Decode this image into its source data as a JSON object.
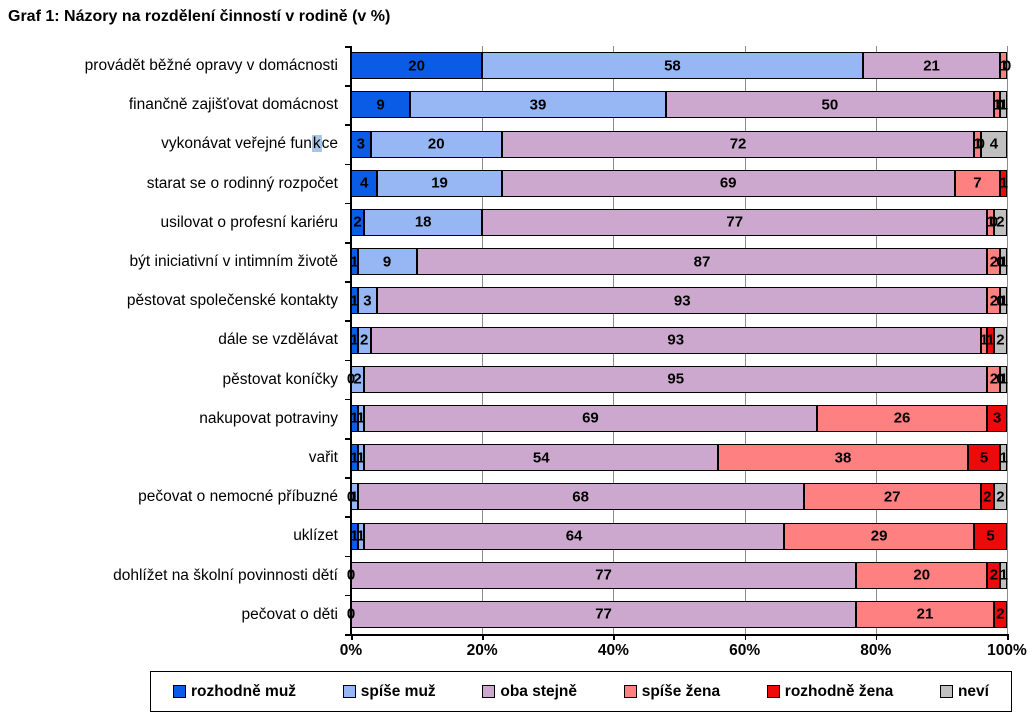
{
  "chart_data": {
    "type": "bar",
    "stacked": true,
    "horizontal": true,
    "title": "Graf 1: Názory na rozdělení činností v rodině (v %)",
    "xlim": [
      0,
      100
    ],
    "x_ticks": [
      "0%",
      "20%",
      "40%",
      "60%",
      "80%",
      "100%"
    ],
    "grid": "vertical",
    "legend_position": "bottom",
    "categories": [
      "provádět běžné opravy v domácnosti",
      "finančně zajišťovat domácnost",
      "vykonávat veřejné funkce",
      "starat se o rodinný rozpočet",
      "usilovat o profesní kariéru",
      "být iniciativní v intimním životě",
      "pěstovat společenské kontakty",
      "dále se vzdělávat",
      "pěstovat koníčky",
      "nakupovat potraviny",
      "vařit",
      "pečovat o nemocné příbuzné",
      "uklízet",
      "dohlížet na školní povinnosti dětí",
      "pečovat o děti"
    ],
    "series": [
      {
        "name": "rozhodně muž",
        "color": "#0a5ce6",
        "values": [
          20,
          9,
          3,
          4,
          2,
          1,
          1,
          1,
          0,
          1,
          1,
          0,
          1,
          0,
          0
        ],
        "visible_labels": [
          "20",
          "9",
          "3",
          "4",
          "2",
          "1",
          "1",
          "1",
          "0",
          "1",
          "1",
          "0",
          "1",
          "0",
          "0"
        ]
      },
      {
        "name": "spíše muž",
        "color": "#96b7f3",
        "values": [
          58,
          39,
          20,
          19,
          18,
          9,
          3,
          2,
          2,
          1,
          1,
          1,
          1,
          0,
          0
        ],
        "visible_labels": [
          "58",
          "39",
          "20",
          "19",
          "18",
          "9",
          "3",
          "2",
          "2",
          "1",
          "1",
          "1",
          "1",
          "0",
          "0"
        ]
      },
      {
        "name": "oba stejně",
        "color": "#cda8ce",
        "values": [
          21,
          50,
          72,
          69,
          77,
          87,
          93,
          93,
          95,
          69,
          54,
          68,
          64,
          77,
          77
        ],
        "visible_labels": [
          "21",
          "50",
          "72",
          "69",
          "77",
          "87",
          "93",
          "93",
          "95",
          "69",
          "54",
          "68",
          "64",
          "77",
          "77"
        ]
      },
      {
        "name": "spíše žena",
        "color": "#ff8080",
        "values": [
          1,
          1,
          1,
          7,
          1,
          2,
          2,
          1,
          2,
          26,
          38,
          27,
          29,
          20,
          21
        ],
        "visible_labels": [
          "1",
          "1",
          "1",
          "7",
          "1",
          "2",
          "2",
          "1",
          "2",
          "26",
          "38",
          "27",
          "29",
          "20",
          "21"
        ]
      },
      {
        "name": "rozhodně žena",
        "color": "#ee0a0a",
        "values": [
          0,
          0,
          0,
          1,
          0,
          0,
          0,
          1,
          0,
          3,
          5,
          2,
          5,
          2,
          2
        ],
        "visible_labels": [
          "0",
          "0",
          "0",
          "1",
          "0",
          "0",
          "0",
          "1",
          "0",
          "3",
          "5",
          "2",
          "5",
          "2",
          "2"
        ]
      },
      {
        "name": "neví",
        "color": "#c0c0c0",
        "values": [
          0,
          1,
          4,
          0,
          2,
          1,
          1,
          2,
          1,
          0,
          1,
          2,
          0,
          1,
          0
        ],
        "visible_labels": [
          "0",
          "1",
          "4",
          "",
          "2",
          "1",
          "1",
          "2",
          "1",
          "",
          "1",
          "2",
          "",
          "1",
          ""
        ]
      }
    ],
    "category_highlight": {
      "category_index": 2,
      "pre": "vykonávat veřejné fun",
      "text": "k",
      "post": "ce",
      "color": "#a9c6e2"
    }
  }
}
